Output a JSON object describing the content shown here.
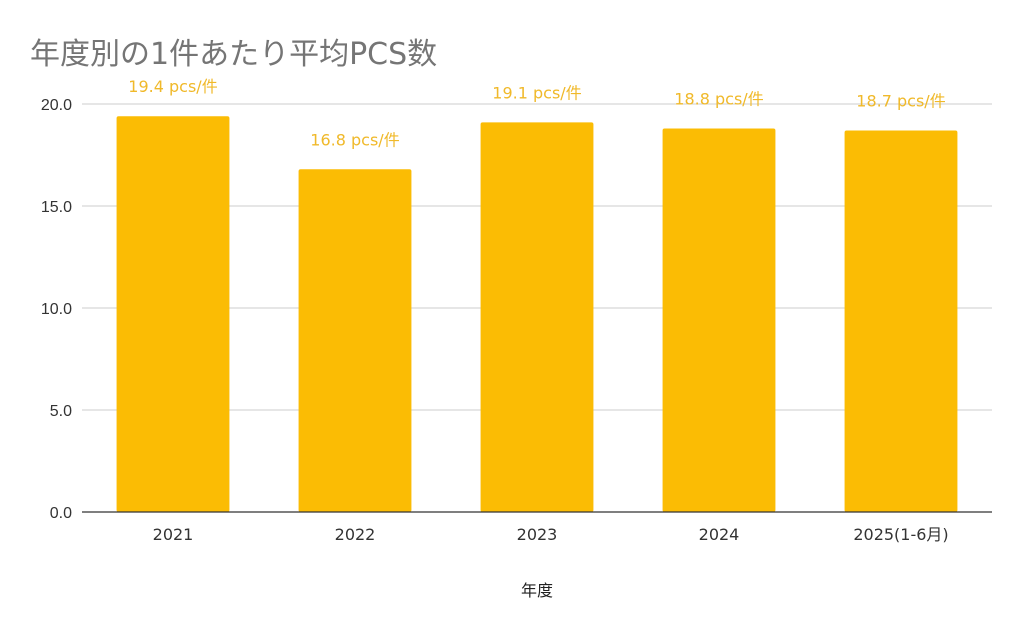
{
  "chart_data": {
    "type": "bar",
    "title": "年度別の1件あたり平均PCS数",
    "xlabel": "年度",
    "ylabel": "",
    "categories": [
      "2021",
      "2022",
      "2023",
      "2024",
      "2025(1-6月)"
    ],
    "values": [
      19.4,
      16.8,
      19.1,
      18.8,
      18.7
    ],
    "data_labels": [
      "19.4 pcs/件",
      "16.8 pcs/件",
      "19.1 pcs/件",
      "18.8 pcs/件",
      "18.7 pcs/件"
    ],
    "ylim": [
      0,
      20
    ],
    "yticks": [
      "0.0",
      "5.0",
      "10.0",
      "15.0",
      "20.0"
    ],
    "grid": true,
    "legend": "none",
    "bar_color": "#fbbc04",
    "label_color": "#f0b92a"
  }
}
